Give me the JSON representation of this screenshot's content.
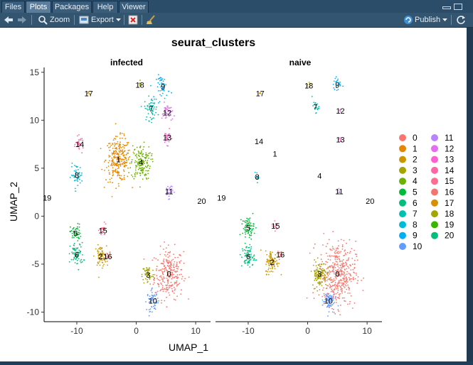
{
  "tabs": [
    {
      "label": "Files",
      "active": false
    },
    {
      "label": "Plots",
      "active": true
    },
    {
      "label": "Packages",
      "active": false
    },
    {
      "label": "Help",
      "active": false
    },
    {
      "label": "Viewer",
      "active": false
    }
  ],
  "toolbar": {
    "zoom_label": "Zoom",
    "export_label": "Export",
    "publish_label": "Publish"
  },
  "colors": {
    "0": "#F8766D",
    "1": "#E58700",
    "2": "#C99800",
    "3": "#A3A500",
    "4": "#6BB100",
    "5": "#00BA38",
    "6": "#00BF7D",
    "7": "#00C0AF",
    "8": "#00BCD8",
    "9": "#00B0F6",
    "10": "#619CFF",
    "11": "#B983FF",
    "12": "#E76BF3",
    "13": "#FD61D1",
    "14": "#FF67A4",
    "15": "#FF6C91",
    "16": "#F2756F",
    "17": "#D89000",
    "18": "#A3A500",
    "19": "#39B600",
    "20": "#00BF7D"
  },
  "chart_data": {
    "type": "scatter",
    "title": "seurat_clusters",
    "xlabel": "UMAP_1",
    "ylabel": "UMAP_2",
    "xlim": [
      -15.5,
      12.5
    ],
    "ylim": [
      -11,
      15.5
    ],
    "x_ticks": [
      "-10",
      "0",
      "10"
    ],
    "y_ticks": [
      "15",
      "10",
      "5",
      "0",
      "-5",
      "-10"
    ],
    "panels": [
      "infected",
      "naive"
    ],
    "legend_title": "",
    "legend_placement": "right",
    "legend_entries": [
      "0",
      "1",
      "2",
      "3",
      "4",
      "5",
      "6",
      "7",
      "8",
      "9",
      "10",
      "11",
      "12",
      "13",
      "14",
      "15",
      "16",
      "17",
      "18",
      "19",
      "20"
    ],
    "clusters": [
      {
        "id": "0",
        "colors": "#F8766D",
        "infected": {
          "x": 5.5,
          "y": -6.0,
          "size": 2.2,
          "n": 260
        },
        "naive": {
          "x": 5.0,
          "y": -6.0,
          "size": 2.8,
          "n": 420
        }
      },
      {
        "id": "1",
        "colors": "#E58700",
        "infected": {
          "x": -3.0,
          "y": 5.9,
          "size": 1.9,
          "n": 260
        },
        "naive": {
          "x": -5.5,
          "y": 6.5,
          "size": 0.1,
          "n": 0
        }
      },
      {
        "id": "2",
        "colors": "#C99800",
        "infected": {
          "x": -6.0,
          "y": -4.2,
          "size": 0.9,
          "n": 70
        },
        "naive": {
          "x": -6.0,
          "y": -4.8,
          "size": 1.0,
          "n": 90
        }
      },
      {
        "id": "3",
        "colors": "#A3A500",
        "infected": {
          "x": 2.0,
          "y": -6.1,
          "size": 0.9,
          "n": 60
        },
        "naive": {
          "x": 2.0,
          "y": -6.0,
          "size": 1.1,
          "n": 110
        }
      },
      {
        "id": "4",
        "colors": "#6BB100",
        "infected": {
          "x": 0.8,
          "y": 5.6,
          "size": 1.5,
          "n": 160
        },
        "naive": {
          "x": 2.0,
          "y": 4.2,
          "size": 0.1,
          "n": 0
        }
      },
      {
        "id": "5",
        "colors": "#00BA38",
        "infected": {
          "x": -10.2,
          "y": -1.8,
          "size": 0.8,
          "n": 50
        },
        "naive": {
          "x": -10.0,
          "y": -1.2,
          "size": 0.9,
          "n": 70
        }
      },
      {
        "id": "6",
        "colors": "#00BF7D",
        "infected": {
          "x": -10.0,
          "y": -4.0,
          "size": 1.0,
          "n": 70
        },
        "naive": {
          "x": -10.0,
          "y": -4.2,
          "size": 1.0,
          "n": 70
        }
      },
      {
        "id": "7",
        "colors": "#00C0AF",
        "infected": {
          "x": 2.5,
          "y": 11.2,
          "size": 1.0,
          "n": 60
        },
        "naive": {
          "x": 1.3,
          "y": 11.4,
          "size": 0.5,
          "n": 18
        }
      },
      {
        "id": "8",
        "colors": "#00BCD8",
        "infected": {
          "x": -10.0,
          "y": 4.3,
          "size": 0.9,
          "n": 50
        },
        "naive": {
          "x": -8.5,
          "y": 4.1,
          "size": 0.4,
          "n": 12
        }
      },
      {
        "id": "9",
        "colors": "#00B0F6",
        "infected": {
          "x": 4.5,
          "y": 13.5,
          "size": 1.0,
          "n": 50
        },
        "naive": {
          "x": 5.0,
          "y": 13.7,
          "size": 0.6,
          "n": 22
        }
      },
      {
        "id": "10",
        "colors": "#619CFF",
        "infected": {
          "x": 2.8,
          "y": -8.8,
          "size": 0.9,
          "n": 60
        },
        "naive": {
          "x": 3.5,
          "y": -8.8,
          "size": 0.9,
          "n": 70
        }
      },
      {
        "id": "11",
        "colors": "#B983FF",
        "infected": {
          "x": 5.5,
          "y": 2.6,
          "size": 0.6,
          "n": 30
        },
        "naive": {
          "x": 5.3,
          "y": 2.6,
          "size": 0.3,
          "n": 6
        }
      },
      {
        "id": "12",
        "colors": "#E76BF3",
        "infected": {
          "x": 5.2,
          "y": 10.8,
          "size": 0.8,
          "n": 40
        },
        "naive": {
          "x": 5.5,
          "y": 11.0,
          "size": 0.2,
          "n": 4
        }
      },
      {
        "id": "13",
        "colors": "#FD61D1",
        "infected": {
          "x": 5.2,
          "y": 8.2,
          "size": 0.6,
          "n": 30
        },
        "naive": {
          "x": 5.5,
          "y": 8.0,
          "size": 0.3,
          "n": 8
        }
      },
      {
        "id": "14",
        "colors": "#FF67A4",
        "infected": {
          "x": -9.5,
          "y": 7.5,
          "size": 0.6,
          "n": 30
        },
        "naive": {
          "x": -8.2,
          "y": 7.8,
          "size": 0.1,
          "n": 0
        }
      },
      {
        "id": "15",
        "colors": "#FF6C91",
        "infected": {
          "x": -5.6,
          "y": -1.5,
          "size": 0.5,
          "n": 25
        },
        "naive": {
          "x": -5.4,
          "y": -1.0,
          "size": 0.4,
          "n": 15
        }
      },
      {
        "id": "16",
        "colors": "#F2756F",
        "infected": {
          "x": -4.8,
          "y": -4.2,
          "size": 0.4,
          "n": 18
        },
        "naive": {
          "x": -4.6,
          "y": -4.0,
          "size": 0.4,
          "n": 15
        }
      },
      {
        "id": "17",
        "colors": "#D89000",
        "infected": {
          "x": -8.0,
          "y": 12.8,
          "size": 0.2,
          "n": 6
        },
        "naive": {
          "x": -8.0,
          "y": 12.8,
          "size": 0.2,
          "n": 5
        }
      },
      {
        "id": "18",
        "colors": "#A3A500",
        "infected": {
          "x": 0.6,
          "y": 13.7,
          "size": 0.3,
          "n": 8
        },
        "naive": {
          "x": 0.2,
          "y": 13.6,
          "size": 0.3,
          "n": 8
        }
      },
      {
        "id": "19",
        "colors": "#39B600",
        "infected": {
          "x": -15.0,
          "y": 1.9,
          "size": 0.1,
          "n": 0
        },
        "naive": {
          "x": -14.5,
          "y": 1.9,
          "size": 0.1,
          "n": 0
        }
      },
      {
        "id": "20",
        "colors": "#00BF7D",
        "infected": {
          "x": 11.0,
          "y": 1.6,
          "size": 0.1,
          "n": 0
        },
        "naive": {
          "x": 10.5,
          "y": 1.6,
          "size": 0.1,
          "n": 0
        }
      }
    ]
  }
}
